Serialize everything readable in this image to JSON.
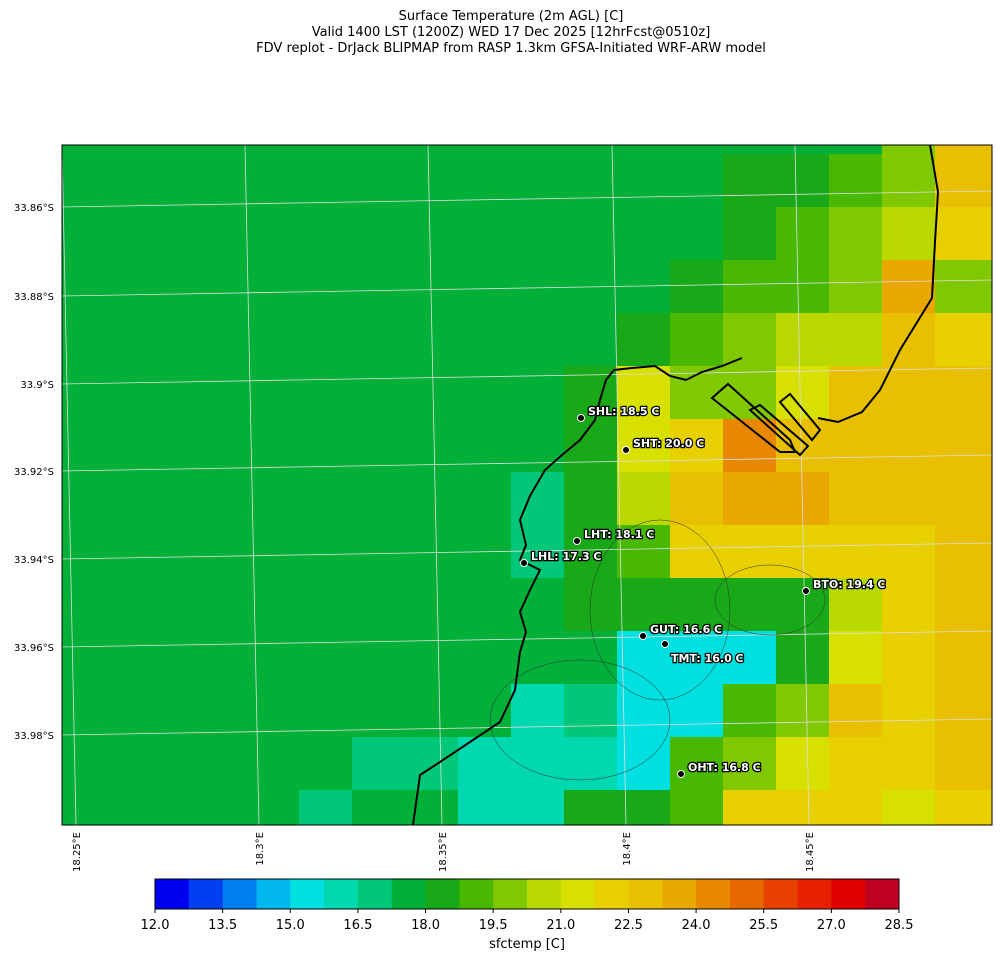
{
  "header": {
    "title_lines": [
      "Surface Temperature (2m AGL) [C]",
      "Valid 1400 LST (1200Z) WED 17 Dec 2025 [12hrFcst@0510z]",
      "FDV replot - DrJack BLIPMAP from RASP 1.3km GFSA-Initiated WRF-ARW model"
    ]
  },
  "map": {
    "lat_labels": [
      "33.86°S",
      "33.88°S",
      "33.9°S",
      "33.92°S",
      "33.94°S",
      "33.96°S",
      "33.98°S"
    ],
    "lon_labels": [
      "18.25°E",
      "18.3°E",
      "18.35°E",
      "18.4°E",
      "18.45°E"
    ],
    "grid_values": [
      [
        17.6,
        17.6,
        17.6,
        17.6,
        17.6,
        17.6,
        17.6,
        17.6,
        17.6,
        17.6,
        17.6,
        17.6,
        17.6,
        17.6,
        17.6,
        17.6,
        19.9,
        22.9,
        22.9
      ],
      [
        17.6,
        17.6,
        17.6,
        17.6,
        17.6,
        17.6,
        17.6,
        17.6,
        17.6,
        17.6,
        17.6,
        17.6,
        17.6,
        18.4,
        18.4,
        19.1,
        19.9,
        22.9,
        22.9
      ],
      [
        17.6,
        17.6,
        17.6,
        17.6,
        17.6,
        17.6,
        17.6,
        17.6,
        17.6,
        17.6,
        17.6,
        17.6,
        17.6,
        18.4,
        19.1,
        19.9,
        20.6,
        22.1,
        22.1
      ],
      [
        17.6,
        17.6,
        17.6,
        17.6,
        17.6,
        17.6,
        17.6,
        17.6,
        17.6,
        17.6,
        17.6,
        17.6,
        18.4,
        19.1,
        19.1,
        19.9,
        23.6,
        19.9,
        19.9
      ],
      [
        17.6,
        17.6,
        17.6,
        17.6,
        17.6,
        17.6,
        17.6,
        17.6,
        17.6,
        17.6,
        17.6,
        18.4,
        19.1,
        19.9,
        20.6,
        20.6,
        22.9,
        22.1,
        22.1
      ],
      [
        17.6,
        17.6,
        17.6,
        17.6,
        17.6,
        17.6,
        17.6,
        17.6,
        17.6,
        17.6,
        18.4,
        21.4,
        19.9,
        19.9,
        21.4,
        22.9,
        22.9,
        22.9,
        22.9
      ],
      [
        17.6,
        17.6,
        17.6,
        17.6,
        17.6,
        17.6,
        17.6,
        17.6,
        17.6,
        17.6,
        18.4,
        21.4,
        22.1,
        24.4,
        22.9,
        22.9,
        22.9,
        22.9,
        22.9
      ],
      [
        17.6,
        17.6,
        17.6,
        17.6,
        17.6,
        17.6,
        17.6,
        17.6,
        17.6,
        16.9,
        18.4,
        20.6,
        22.9,
        23.6,
        23.6,
        22.9,
        22.9,
        22.9,
        22.9
      ],
      [
        17.6,
        17.6,
        17.6,
        17.6,
        17.6,
        17.6,
        17.6,
        17.6,
        17.6,
        16.9,
        18.4,
        19.1,
        22.1,
        22.1,
        22.1,
        22.1,
        22.1,
        22.9,
        22.9
      ],
      [
        17.6,
        17.6,
        17.6,
        17.6,
        17.6,
        17.6,
        17.6,
        17.6,
        17.6,
        17.6,
        18.4,
        18.4,
        18.4,
        18.4,
        18.4,
        20.6,
        22.1,
        22.9,
        22.9
      ],
      [
        17.6,
        17.6,
        17.6,
        17.6,
        17.6,
        17.6,
        17.6,
        17.6,
        17.6,
        17.6,
        17.6,
        15.4,
        15.4,
        15.4,
        18.4,
        21.4,
        22.1,
        22.9,
        22.9
      ],
      [
        17.6,
        17.6,
        17.6,
        17.6,
        17.6,
        17.6,
        17.6,
        17.6,
        17.6,
        16.1,
        16.9,
        15.4,
        15.4,
        19.1,
        19.9,
        22.9,
        22.1,
        22.9,
        22.9
      ],
      [
        17.6,
        17.6,
        17.6,
        17.6,
        17.6,
        17.6,
        16.9,
        16.9,
        16.1,
        16.1,
        16.1,
        15.4,
        19.1,
        19.9,
        21.4,
        22.1,
        22.1,
        22.9,
        22.9
      ],
      [
        17.6,
        17.6,
        17.6,
        17.6,
        17.6,
        16.9,
        17.6,
        17.6,
        16.1,
        16.1,
        18.4,
        18.4,
        19.1,
        22.1,
        22.1,
        22.1,
        21.4,
        22.1,
        22.1
      ]
    ],
    "stations": [
      {
        "label": "SHL: 18.5 C"
      },
      {
        "label": "SHT: 20.0 C"
      },
      {
        "label": "LHT: 18.1 C"
      },
      {
        "label": "LHL: 17.3 C"
      },
      {
        "label": "BTO: 19.4 C"
      },
      {
        "label": "GUT: 16.6 C"
      },
      {
        "label": "TMT: 16.0 C"
      },
      {
        "label": "OHT: 16.8 C"
      }
    ]
  },
  "colorbar": {
    "label": "sfctemp [C]",
    "levels": [
      12.0,
      12.75,
      13.5,
      14.25,
      15.0,
      15.75,
      16.5,
      17.25,
      18.0,
      18.75,
      19.5,
      20.25,
      21.0,
      21.75,
      22.5,
      23.25,
      24.0,
      24.75,
      25.5,
      26.25,
      27.0,
      27.75,
      28.5
    ],
    "colors": [
      "#0000f0",
      "#0040f0",
      "#0080f0",
      "#00b8ee",
      "#00e0e0",
      "#00d8b0",
      "#00c878",
      "#00b038",
      "#18a818",
      "#48b800",
      "#80c800",
      "#b8d800",
      "#d8e000",
      "#e8d000",
      "#e8c000",
      "#e8a800",
      "#e88800",
      "#e86800",
      "#e84000",
      "#e82000",
      "#e00000",
      "#c00020"
    ],
    "ticks": [
      {
        "value": 12.0,
        "label": "12.0"
      },
      13.5,
      {
        "value": 15.0,
        "label": "15.0"
      },
      16.5,
      {
        "value": 18.0,
        "label": "18.0"
      },
      19.5,
      {
        "value": 21.0,
        "label": "21.0"
      },
      22.5,
      {
        "value": 24.0,
        "label": "24.0"
      },
      25.5,
      {
        "value": 27.0,
        "label": "27.0"
      },
      28.5
    ]
  }
}
